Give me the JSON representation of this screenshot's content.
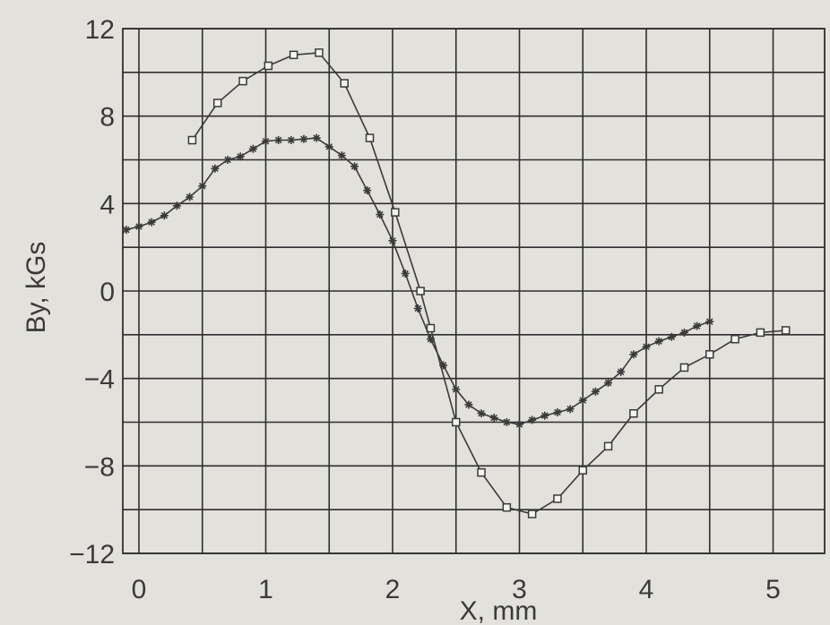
{
  "chart_data": {
    "type": "line",
    "title": "",
    "xlabel": "X,  mm",
    "ylabel": "By,  kGs",
    "xlim": [
      0,
      5.5
    ],
    "ylim": [
      -12,
      12
    ],
    "x_ticks": [
      "0",
      "1",
      "2",
      "3",
      "4",
      "5"
    ],
    "y_ticks": [
      "12",
      "8",
      "4",
      "0",
      "−4",
      "−8",
      "−12"
    ],
    "grid": true,
    "series": [
      {
        "marker": "square",
        "points": [
          {
            "x": 0.42,
            "y": 6.9
          },
          {
            "x": 0.62,
            "y": 8.6
          },
          {
            "x": 0.82,
            "y": 9.6
          },
          {
            "x": 1.02,
            "y": 10.3
          },
          {
            "x": 1.22,
            "y": 10.8
          },
          {
            "x": 1.42,
            "y": 10.9
          },
          {
            "x": 1.62,
            "y": 9.5
          },
          {
            "x": 1.82,
            "y": 7.0
          },
          {
            "x": 2.02,
            "y": 3.6
          },
          {
            "x": 2.22,
            "y": 0.0
          },
          {
            "x": 2.3,
            "y": -1.7
          },
          {
            "x": 2.5,
            "y": -6.0
          },
          {
            "x": 2.7,
            "y": -8.3
          },
          {
            "x": 2.9,
            "y": -9.9
          },
          {
            "x": 3.1,
            "y": -10.2
          },
          {
            "x": 3.3,
            "y": -9.5
          },
          {
            "x": 3.5,
            "y": -8.2
          },
          {
            "x": 3.7,
            "y": -7.1
          },
          {
            "x": 3.9,
            "y": -5.6
          },
          {
            "x": 4.1,
            "y": -4.5
          },
          {
            "x": 4.3,
            "y": -3.5
          },
          {
            "x": 4.5,
            "y": -2.9
          },
          {
            "x": 4.7,
            "y": -2.2
          },
          {
            "x": 4.9,
            "y": -1.9
          },
          {
            "x": 5.1,
            "y": -1.8
          }
        ]
      },
      {
        "marker": "star",
        "points": [
          {
            "x": -0.1,
            "y": 2.8
          },
          {
            "x": 0.0,
            "y": 2.95
          },
          {
            "x": 0.1,
            "y": 3.15
          },
          {
            "x": 0.2,
            "y": 3.45
          },
          {
            "x": 0.3,
            "y": 3.9
          },
          {
            "x": 0.4,
            "y": 4.3
          },
          {
            "x": 0.5,
            "y": 4.8
          },
          {
            "x": 0.6,
            "y": 5.6
          },
          {
            "x": 0.7,
            "y": 6.0
          },
          {
            "x": 0.8,
            "y": 6.15
          },
          {
            "x": 0.9,
            "y": 6.5
          },
          {
            "x": 1.0,
            "y": 6.85
          },
          {
            "x": 1.1,
            "y": 6.9
          },
          {
            "x": 1.2,
            "y": 6.9
          },
          {
            "x": 1.3,
            "y": 6.95
          },
          {
            "x": 1.4,
            "y": 7.0
          },
          {
            "x": 1.5,
            "y": 6.6
          },
          {
            "x": 1.6,
            "y": 6.2
          },
          {
            "x": 1.7,
            "y": 5.7
          },
          {
            "x": 1.8,
            "y": 4.6
          },
          {
            "x": 1.9,
            "y": 3.5
          },
          {
            "x": 2.0,
            "y": 2.3
          },
          {
            "x": 2.1,
            "y": 0.8
          },
          {
            "x": 2.2,
            "y": -0.8
          },
          {
            "x": 2.3,
            "y": -2.2
          },
          {
            "x": 2.4,
            "y": -3.4
          },
          {
            "x": 2.5,
            "y": -4.5
          },
          {
            "x": 2.6,
            "y": -5.2
          },
          {
            "x": 2.7,
            "y": -5.6
          },
          {
            "x": 2.8,
            "y": -5.8
          },
          {
            "x": 2.9,
            "y": -6.0
          },
          {
            "x": 3.0,
            "y": -6.1
          },
          {
            "x": 3.1,
            "y": -5.9
          },
          {
            "x": 3.2,
            "y": -5.7
          },
          {
            "x": 3.3,
            "y": -5.55
          },
          {
            "x": 3.4,
            "y": -5.4
          },
          {
            "x": 3.5,
            "y": -5.0
          },
          {
            "x": 3.6,
            "y": -4.6
          },
          {
            "x": 3.7,
            "y": -4.2
          },
          {
            "x": 3.8,
            "y": -3.7
          },
          {
            "x": 3.9,
            "y": -2.9
          },
          {
            "x": 4.0,
            "y": -2.55
          },
          {
            "x": 4.1,
            "y": -2.3
          },
          {
            "x": 4.2,
            "y": -2.1
          },
          {
            "x": 4.3,
            "y": -1.9
          },
          {
            "x": 4.4,
            "y": -1.6
          },
          {
            "x": 4.5,
            "y": -1.4
          }
        ]
      }
    ]
  }
}
